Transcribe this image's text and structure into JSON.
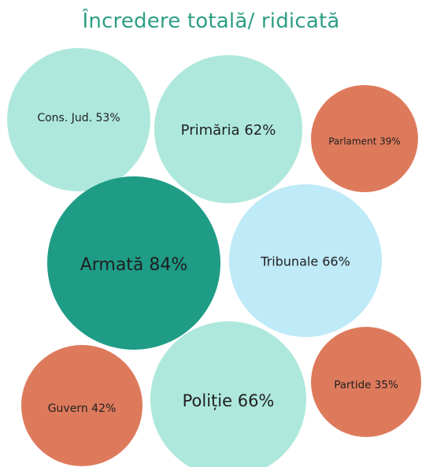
{
  "chart_data": {
    "type": "bubble",
    "title": "Încredere totală/ ridicată",
    "items": [
      {
        "label": "Cons. Jud. 53%",
        "value": 53,
        "color": "#aee8dc",
        "text_color": "#1f1f1f"
      },
      {
        "label": "Primăria 62%",
        "value": 62,
        "color": "#aee8dc",
        "text_color": "#1f1f1f"
      },
      {
        "label": "Parlament 39%",
        "value": 39,
        "color": "#de7a5c",
        "text_color": "#1f1f1f"
      },
      {
        "label": "Armată 84%",
        "value": 84,
        "color": "#1e9c86",
        "text_color": "#1f1f1f"
      },
      {
        "label": "Tribunale 66%",
        "value": 66,
        "color": "#bfeaf8",
        "text_color": "#1f1f1f"
      },
      {
        "label": "Guvern 42%",
        "value": 42,
        "color": "#de7a5c",
        "text_color": "#1f1f1f"
      },
      {
        "label": "Poliție 66%",
        "value": 66,
        "color": "#aee8dc",
        "text_color": "#1f1f1f"
      },
      {
        "label": "Partide 35%",
        "value": 35,
        "color": "#de7a5c",
        "text_color": "#1f1f1f"
      }
    ]
  }
}
